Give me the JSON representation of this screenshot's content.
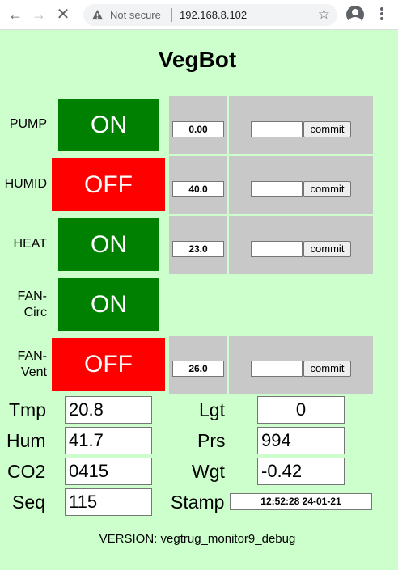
{
  "browser": {
    "security_label": "Not secure",
    "url": "192.168.8.102"
  },
  "page": {
    "title": "VegBot"
  },
  "devices": [
    {
      "label_lines": [
        "PUMP"
      ],
      "state": "ON",
      "setpoint": "0.00",
      "input_value": "",
      "commit_label": "commit"
    },
    {
      "label_lines": [
        "HUMID"
      ],
      "state": "OFF",
      "setpoint": "40.0",
      "input_value": "",
      "commit_label": "commit"
    },
    {
      "label_lines": [
        "HEAT"
      ],
      "state": "ON",
      "setpoint": "23.0",
      "input_value": "",
      "commit_label": "commit"
    },
    {
      "label_lines": [
        "FAN-",
        "Circ"
      ],
      "state": "ON"
    },
    {
      "label_lines": [
        "FAN-",
        "Vent"
      ],
      "state": "OFF",
      "setpoint": "26.0",
      "input_value": "",
      "commit_label": "commit"
    }
  ],
  "sensors": {
    "tmp": {
      "label": "Tmp",
      "value": "20.8"
    },
    "lgt": {
      "label": "Lgt",
      "value": "0"
    },
    "hum": {
      "label": "Hum",
      "value": "41.7"
    },
    "prs": {
      "label": "Prs",
      "value": "994"
    },
    "co2": {
      "label": "CO2",
      "value": "0415"
    },
    "wgt": {
      "label": "Wgt",
      "value": "-0.42"
    },
    "seq": {
      "label": "Seq",
      "value": "115"
    },
    "stamp": {
      "label": "Stamp",
      "value": "12:52:28 24-01-21"
    }
  },
  "footer": {
    "version_text": "VERSION: vegtrug_monitor9_debug"
  },
  "colors": {
    "page_bg": "#ccffcc",
    "on": "#008000",
    "off": "#ff0000",
    "panel": "#c8c8c8"
  }
}
